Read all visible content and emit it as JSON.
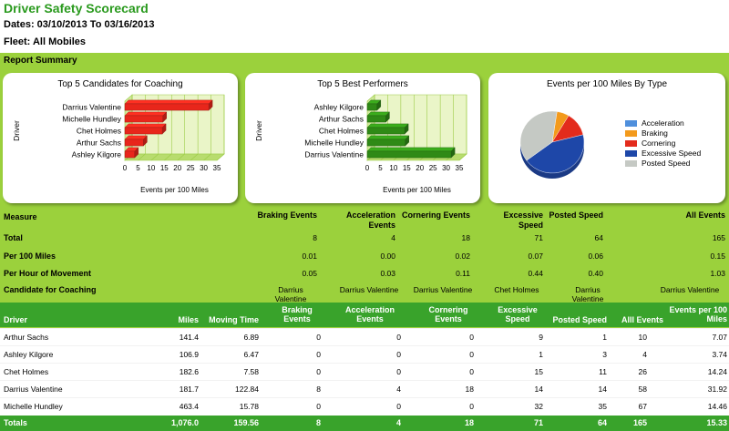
{
  "report": {
    "title": "Driver Safety Scorecard",
    "dates": "Dates: 03/10/2013 To 03/16/2013",
    "fleet": "Fleet: All Mobiles",
    "summary_label": "Report Summary"
  },
  "charts": [
    {
      "type": "bar",
      "orientation": "horizontal",
      "title": "Top 5 Candidates for Coaching",
      "ylabel": "Driver",
      "xlabel": "Events per 100 Miles",
      "categories": [
        "Darrius Valentine",
        "Michelle Hundley",
        "Chet Holmes",
        "Arthur Sachs",
        "Ashley Kilgore"
      ],
      "values": [
        31.92,
        14.46,
        14.24,
        7.07,
        3.74
      ],
      "ticks": [
        "0",
        "5",
        "10",
        "15",
        "20",
        "25",
        "30",
        "35"
      ],
      "xlim": [
        0,
        35
      ],
      "grid": true,
      "color": "#e8261b"
    },
    {
      "type": "bar",
      "orientation": "horizontal",
      "title": "Top 5 Best Performers",
      "ylabel": "Driver",
      "xlabel": "Events per 100 Miles",
      "categories": [
        "Ashley Kilgore",
        "Arthur Sachs",
        "Chet Holmes",
        "Michelle Hundley",
        "Darrius Valentine"
      ],
      "values": [
        3.74,
        7.07,
        14.24,
        14.46,
        31.92
      ],
      "ticks": [
        "0",
        "5",
        "10",
        "15",
        "20",
        "25",
        "30",
        "35"
      ],
      "xlim": [
        0,
        35
      ],
      "grid": true,
      "color": "#2f8a16"
    },
    {
      "type": "pie",
      "title": "Events per 100 Miles By Type",
      "slices": [
        {
          "name": "Acceleration",
          "value": 0.0,
          "color": "#4f8fdc"
        },
        {
          "name": "Braking",
          "value": 0.01,
          "color": "#f39a1c"
        },
        {
          "name": "Cornering",
          "value": 0.02,
          "color": "#e32b1c"
        },
        {
          "name": "Excessive Speed",
          "value": 0.07,
          "color": "#1e47a8"
        },
        {
          "name": "Posted Speed",
          "value": 0.06,
          "color": "#c5c9c4"
        }
      ],
      "legend_position": "right"
    }
  ],
  "summary": {
    "measure_label": "Measure",
    "headers": [
      "Braking Events",
      "Acceleration Events",
      "Cornering Events",
      "Excessive Speed",
      "Posted Speed",
      "All Events"
    ],
    "rows": [
      {
        "label": "Total",
        "values": [
          "8",
          "4",
          "18",
          "71",
          "64",
          "165"
        ]
      },
      {
        "label": "Per 100 Miles",
        "values": [
          "0.01",
          "0.00",
          "0.02",
          "0.07",
          "0.06",
          "0.15"
        ]
      },
      {
        "label": "Per Hour of Movement",
        "values": [
          "0.05",
          "0.03",
          "0.11",
          "0.44",
          "0.40",
          "1.03"
        ]
      }
    ],
    "coaching": {
      "label": "Candidate for Coaching",
      "values": [
        "Darrius Valentine",
        "Darrius Valentine",
        "Darrius Valentine",
        "Chet Holmes",
        "Darrius Valentine",
        "Darrius Valentine"
      ]
    }
  },
  "table": {
    "headers": {
      "driver": "Driver",
      "miles": "Miles",
      "moving_time": "Moving Time",
      "braking": "Braking Events",
      "acceleration": "Acceleration Events",
      "cornering": "Cornering Events",
      "excessive": "Excessive Speed",
      "posted": "Posted Speed",
      "all": "Alll Events",
      "per100": "Events per 100 Miles"
    },
    "rows": [
      [
        "Arthur Sachs",
        "141.4",
        "6.89",
        "0",
        "0",
        "0",
        "9",
        "1",
        "10",
        "7.07"
      ],
      [
        "Ashley Kilgore",
        "106.9",
        "6.47",
        "0",
        "0",
        "0",
        "1",
        "3",
        "4",
        "3.74"
      ],
      [
        "Chet Holmes",
        "182.6",
        "7.58",
        "0",
        "0",
        "0",
        "15",
        "11",
        "26",
        "14.24"
      ],
      [
        "Darrius Valentine",
        "181.7",
        "122.84",
        "8",
        "4",
        "18",
        "14",
        "14",
        "58",
        "31.92"
      ],
      [
        "Michelle Hundley",
        "463.4",
        "15.78",
        "0",
        "0",
        "0",
        "32",
        "35",
        "67",
        "14.46"
      ]
    ],
    "totals": [
      "Totals",
      "1,076.0",
      "159.56",
      "8",
      "4",
      "18",
      "71",
      "64",
      "165",
      "15.33"
    ]
  }
}
